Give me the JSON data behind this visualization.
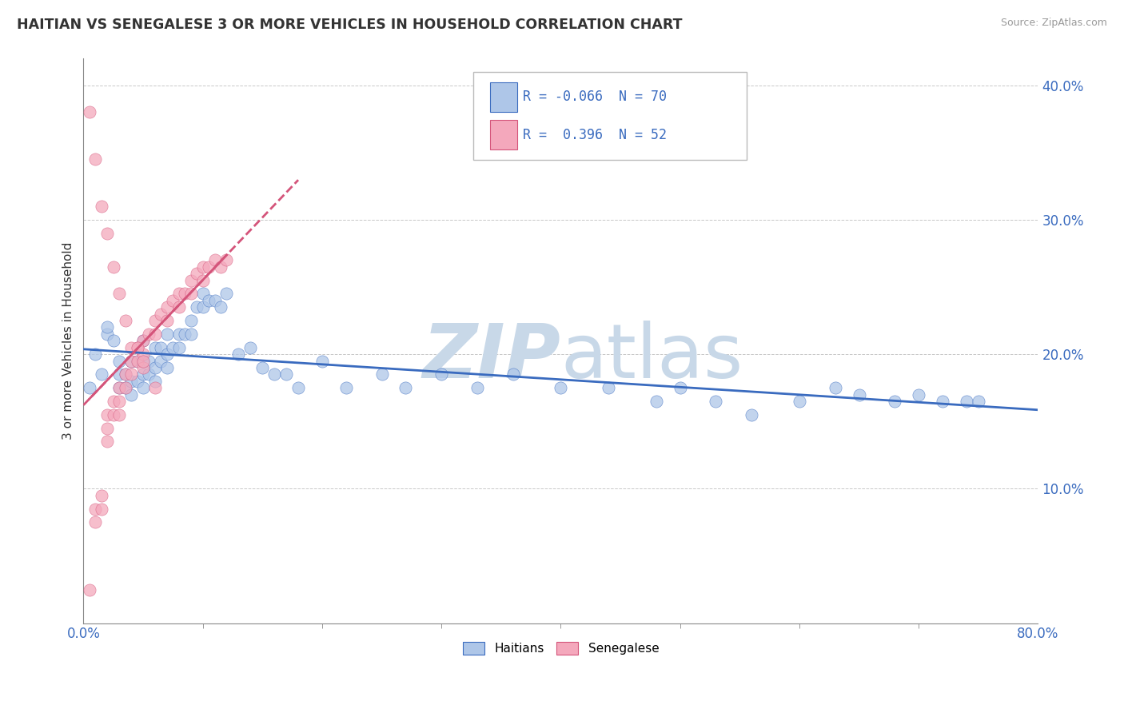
{
  "title": "HAITIAN VS SENEGALESE 3 OR MORE VEHICLES IN HOUSEHOLD CORRELATION CHART",
  "source": "Source: ZipAtlas.com",
  "xlim": [
    0.0,
    0.8
  ],
  "ylim": [
    0.0,
    0.42
  ],
  "ylabel": "3 or more Vehicles in Household",
  "legend_label1": "Haitians",
  "legend_label2": "Senegalese",
  "R1": "-0.066",
  "N1": "70",
  "R2": "0.396",
  "N2": "52",
  "color_haitian": "#aec6e8",
  "color_senegalese": "#f4a8bc",
  "trendline_haitian": "#3a6bbf",
  "trendline_senegalese": "#d4547a",
  "watermark_color": "#c8d8e8",
  "haitian_x": [
    0.005,
    0.01,
    0.015,
    0.02,
    0.02,
    0.025,
    0.03,
    0.03,
    0.03,
    0.035,
    0.035,
    0.04,
    0.04,
    0.04,
    0.045,
    0.045,
    0.05,
    0.05,
    0.05,
    0.05,
    0.055,
    0.055,
    0.06,
    0.06,
    0.06,
    0.065,
    0.065,
    0.07,
    0.07,
    0.07,
    0.075,
    0.08,
    0.08,
    0.085,
    0.09,
    0.09,
    0.095,
    0.1,
    0.1,
    0.105,
    0.11,
    0.115,
    0.12,
    0.13,
    0.14,
    0.15,
    0.16,
    0.17,
    0.18,
    0.2,
    0.22,
    0.25,
    0.27,
    0.3,
    0.33,
    0.36,
    0.4,
    0.44,
    0.48,
    0.5,
    0.53,
    0.56,
    0.6,
    0.63,
    0.65,
    0.68,
    0.7,
    0.72,
    0.74,
    0.75
  ],
  "haitian_y": [
    0.175,
    0.2,
    0.185,
    0.215,
    0.22,
    0.21,
    0.195,
    0.185,
    0.175,
    0.185,
    0.175,
    0.195,
    0.18,
    0.17,
    0.195,
    0.18,
    0.21,
    0.195,
    0.185,
    0.175,
    0.195,
    0.185,
    0.205,
    0.19,
    0.18,
    0.205,
    0.195,
    0.215,
    0.2,
    0.19,
    0.205,
    0.215,
    0.205,
    0.215,
    0.225,
    0.215,
    0.235,
    0.245,
    0.235,
    0.24,
    0.24,
    0.235,
    0.245,
    0.2,
    0.205,
    0.19,
    0.185,
    0.185,
    0.175,
    0.195,
    0.175,
    0.185,
    0.175,
    0.185,
    0.175,
    0.185,
    0.175,
    0.175,
    0.165,
    0.175,
    0.165,
    0.155,
    0.165,
    0.175,
    0.17,
    0.165,
    0.17,
    0.165,
    0.165,
    0.165
  ],
  "senegalese_x": [
    0.005,
    0.01,
    0.01,
    0.015,
    0.015,
    0.02,
    0.02,
    0.02,
    0.025,
    0.025,
    0.03,
    0.03,
    0.03,
    0.035,
    0.035,
    0.04,
    0.04,
    0.045,
    0.045,
    0.05,
    0.05,
    0.05,
    0.055,
    0.06,
    0.06,
    0.065,
    0.07,
    0.07,
    0.075,
    0.08,
    0.08,
    0.085,
    0.09,
    0.09,
    0.095,
    0.1,
    0.1,
    0.105,
    0.11,
    0.115,
    0.12,
    0.005,
    0.01,
    0.015,
    0.02,
    0.025,
    0.03,
    0.035,
    0.04,
    0.045,
    0.05,
    0.06
  ],
  "senegalese_y": [
    0.025,
    0.085,
    0.075,
    0.095,
    0.085,
    0.155,
    0.145,
    0.135,
    0.165,
    0.155,
    0.175,
    0.165,
    0.155,
    0.185,
    0.175,
    0.195,
    0.185,
    0.205,
    0.195,
    0.21,
    0.2,
    0.19,
    0.215,
    0.225,
    0.215,
    0.23,
    0.235,
    0.225,
    0.24,
    0.245,
    0.235,
    0.245,
    0.255,
    0.245,
    0.26,
    0.265,
    0.255,
    0.265,
    0.27,
    0.265,
    0.27,
    0.38,
    0.345,
    0.31,
    0.29,
    0.265,
    0.245,
    0.225,
    0.205,
    0.205,
    0.195,
    0.175
  ]
}
